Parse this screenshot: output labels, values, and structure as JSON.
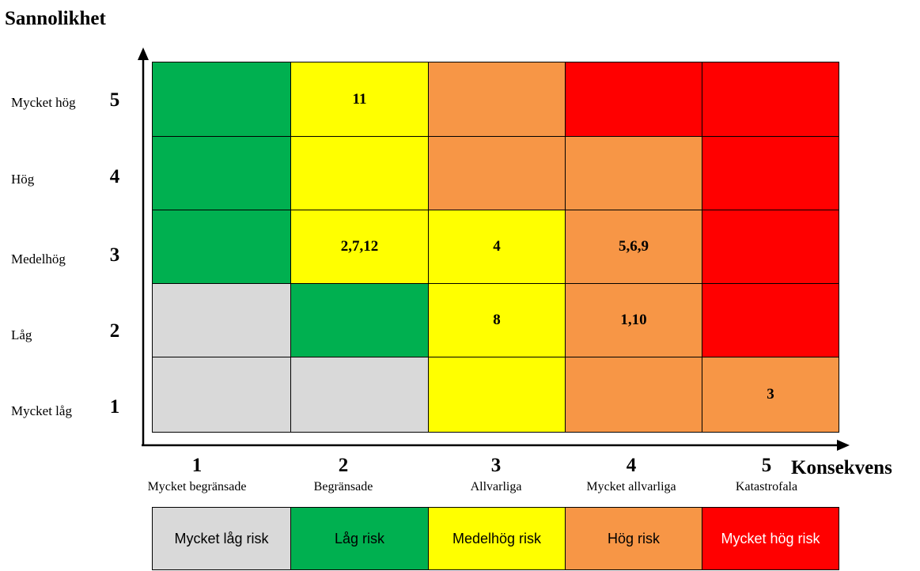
{
  "y_axis": {
    "title": "Sannolikhet",
    "levels": [
      {
        "num": "5",
        "label": "Mycket hög"
      },
      {
        "num": "4",
        "label": "Hög"
      },
      {
        "num": "3",
        "label": "Medelhög"
      },
      {
        "num": "2",
        "label": "Låg"
      },
      {
        "num": "1",
        "label": "Mycket låg"
      }
    ]
  },
  "x_axis": {
    "title": "Konsekvens",
    "levels": [
      {
        "num": "1",
        "label": "Mycket begränsade"
      },
      {
        "num": "2",
        "label": "Begränsade"
      },
      {
        "num": "3",
        "label": "Allvarliga"
      },
      {
        "num": "4",
        "label": "Mycket allvarliga"
      },
      {
        "num": "5",
        "label": "Katastrofala"
      }
    ]
  },
  "colors": {
    "very_low": "#d9d9d9",
    "low": "#00b050",
    "medium": "#ffff00",
    "high": "#f79646",
    "very_high": "#ff0000"
  },
  "matrix": {
    "rows": [
      {
        "probability": "5",
        "cells": [
          {
            "risk": "low",
            "value": ""
          },
          {
            "risk": "medium",
            "value": "11"
          },
          {
            "risk": "high",
            "value": ""
          },
          {
            "risk": "very_high",
            "value": ""
          },
          {
            "risk": "very_high",
            "value": ""
          }
        ]
      },
      {
        "probability": "4",
        "cells": [
          {
            "risk": "low",
            "value": ""
          },
          {
            "risk": "medium",
            "value": ""
          },
          {
            "risk": "high",
            "value": ""
          },
          {
            "risk": "high",
            "value": ""
          },
          {
            "risk": "very_high",
            "value": ""
          }
        ]
      },
      {
        "probability": "3",
        "cells": [
          {
            "risk": "low",
            "value": ""
          },
          {
            "risk": "medium",
            "value": "2,7,12"
          },
          {
            "risk": "medium",
            "value": "4"
          },
          {
            "risk": "high",
            "value": "5,6,9"
          },
          {
            "risk": "very_high",
            "value": ""
          }
        ]
      },
      {
        "probability": "2",
        "cells": [
          {
            "risk": "very_low",
            "value": ""
          },
          {
            "risk": "low",
            "value": ""
          },
          {
            "risk": "medium",
            "value": "8"
          },
          {
            "risk": "high",
            "value": "1,10"
          },
          {
            "risk": "very_high",
            "value": ""
          }
        ]
      },
      {
        "probability": "1",
        "cells": [
          {
            "risk": "very_low",
            "value": ""
          },
          {
            "risk": "very_low",
            "value": ""
          },
          {
            "risk": "medium",
            "value": ""
          },
          {
            "risk": "high",
            "value": ""
          },
          {
            "risk": "high",
            "value": "3"
          }
        ]
      }
    ]
  },
  "legend": [
    {
      "risk": "very_low",
      "label": "Mycket låg risk"
    },
    {
      "risk": "low",
      "label": "Låg risk"
    },
    {
      "risk": "medium",
      "label": "Medelhög risk"
    },
    {
      "risk": "high",
      "label": "Hög risk"
    },
    {
      "risk": "very_high",
      "label": "Mycket hög risk"
    }
  ]
}
